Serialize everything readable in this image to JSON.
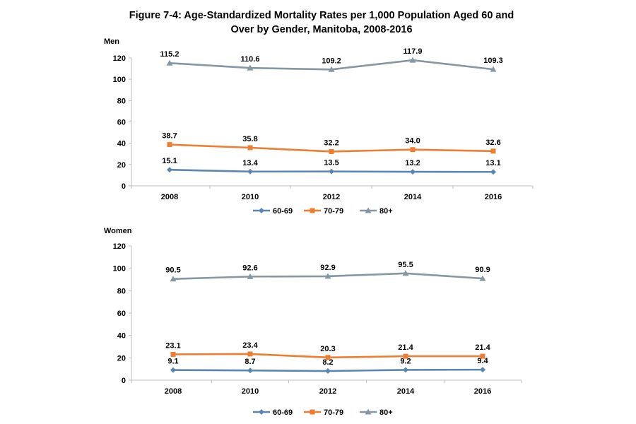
{
  "title": {
    "line1": "Figure 7-4: Age-Standardized Mortality Rates per 1,000 Population Aged 60 and",
    "line2": "Over by Gender, Manitoba, 2008-2016"
  },
  "colors": {
    "60-69": "#5b86b0",
    "70-79": "#ed7d31",
    "80+": "#8497a3",
    "axis": "#bfbfbf"
  },
  "chart_data": [
    {
      "type": "line",
      "ylabel": "Men",
      "xlabel": "",
      "categories": [
        "2008",
        "2010",
        "2012",
        "2014",
        "2016"
      ],
      "ylim": [
        0,
        120
      ],
      "yticks": [
        "0",
        "20",
        "40",
        "60",
        "80",
        "100",
        "120"
      ],
      "grid": false,
      "legend": "bottom",
      "series": [
        {
          "name": "60-69",
          "marker": "diamond",
          "values": [
            15.1,
            13.4,
            13.5,
            13.2,
            13.1
          ],
          "labels": [
            "15.1",
            "13.4",
            "13.5",
            "13.2",
            "13.1"
          ]
        },
        {
          "name": "70-79",
          "marker": "square",
          "values": [
            38.7,
            35.8,
            32.2,
            34.0,
            32.6
          ],
          "labels": [
            "38.7",
            "35.8",
            "32.2",
            "34.0",
            "32.6"
          ]
        },
        {
          "name": "80+",
          "marker": "triangle",
          "values": [
            115.2,
            110.6,
            109.2,
            117.9,
            109.3
          ],
          "labels": [
            "115.2",
            "110.6",
            "109.2",
            "117.9",
            "109.3"
          ]
        }
      ]
    },
    {
      "type": "line",
      "ylabel": "Women",
      "xlabel": "",
      "categories": [
        "2008",
        "2010",
        "2012",
        "2014",
        "2016"
      ],
      "ylim": [
        0,
        120
      ],
      "yticks": [
        "0",
        "20",
        "40",
        "60",
        "80",
        "100",
        "120"
      ],
      "grid": false,
      "legend": "bottom",
      "series": [
        {
          "name": "60-69",
          "marker": "diamond",
          "values": [
            9.1,
            8.7,
            8.2,
            9.2,
            9.4
          ],
          "labels": [
            "9.1",
            "8.7",
            "8.2",
            "9.2",
            "9.4"
          ]
        },
        {
          "name": "70-79",
          "marker": "square",
          "values": [
            23.1,
            23.4,
            20.3,
            21.4,
            21.4
          ],
          "labels": [
            "23.1",
            "23.4",
            "20.3",
            "21.4",
            "21.4"
          ]
        },
        {
          "name": "80+",
          "marker": "triangle",
          "values": [
            90.5,
            92.6,
            92.9,
            95.5,
            90.9
          ],
          "labels": [
            "90.5",
            "92.6",
            "92.9",
            "95.5",
            "90.9"
          ]
        }
      ]
    }
  ]
}
